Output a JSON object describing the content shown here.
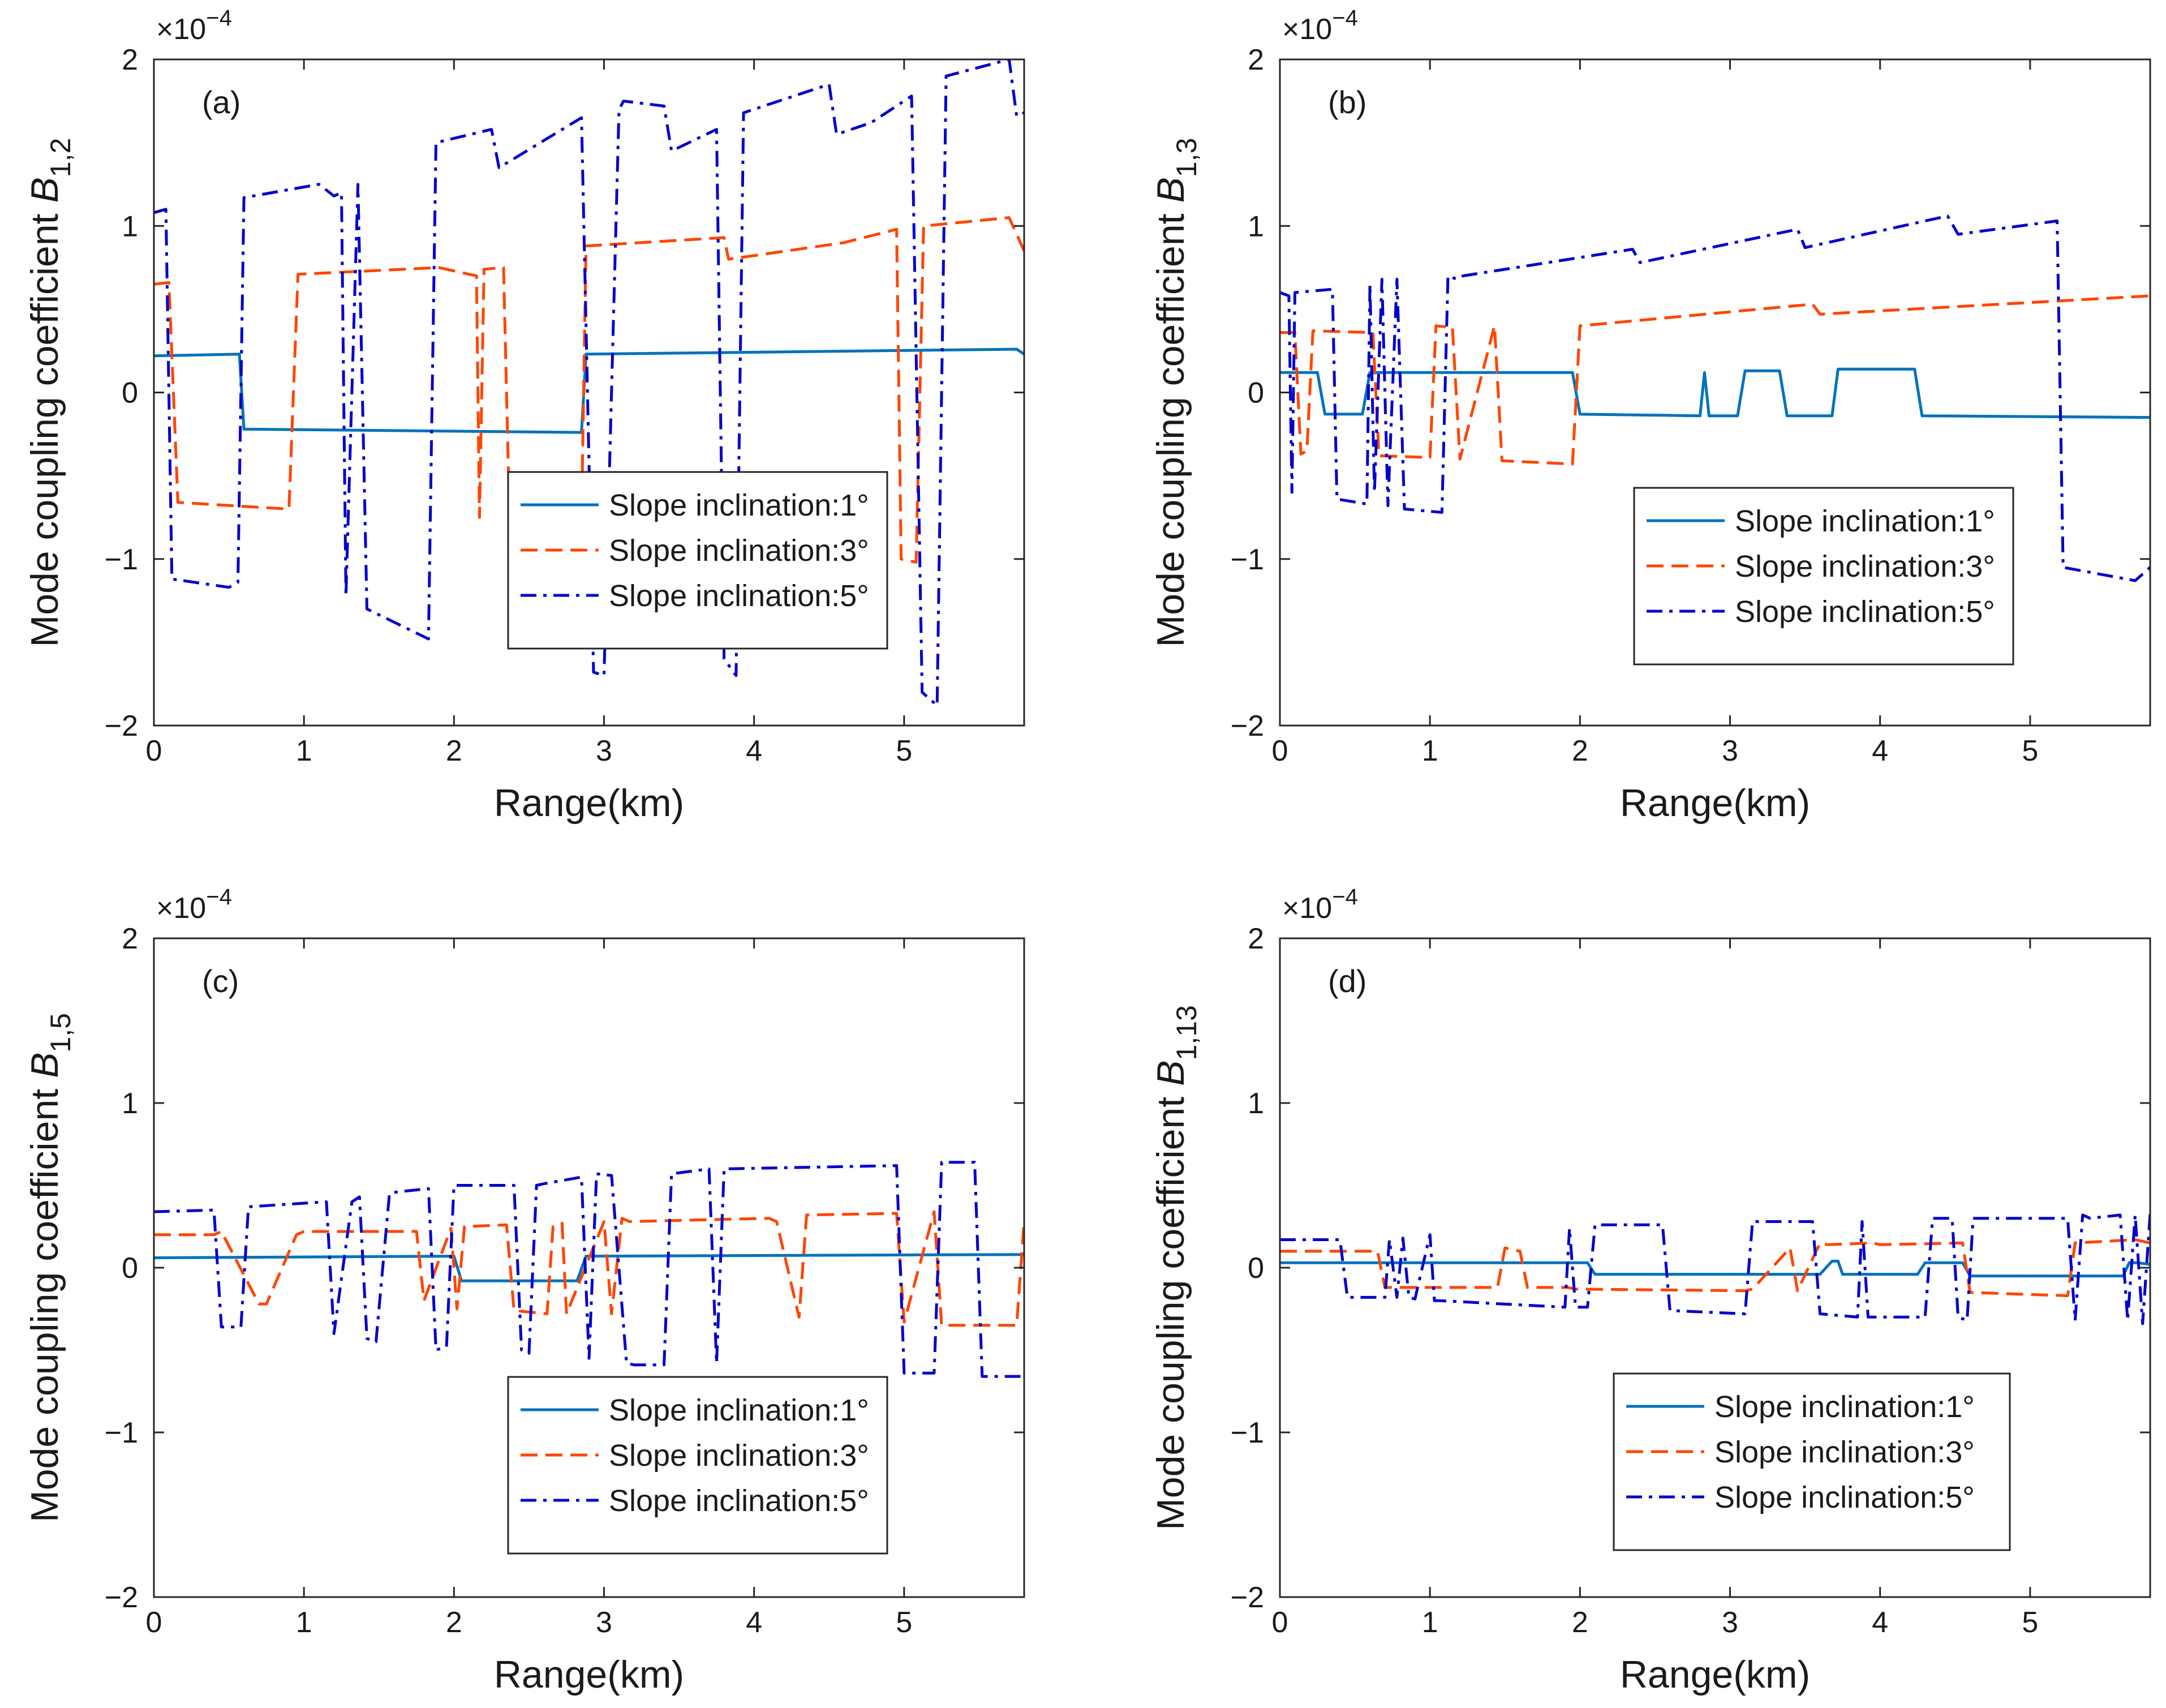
{
  "colors": {
    "slope1": "#0072BD",
    "slope3": "#FF4500",
    "slope5": "#0000CD",
    "axis": "#262626",
    "text": "#1a1a1a"
  },
  "chart_data": [
    {
      "type": "line",
      "panel": "(a)",
      "xlabel": "Range(km)",
      "ylabel_prefix": "Mode coupling coefficient ",
      "ylabel_symbol": "B",
      "ylabel_subscript": "1,2",
      "y_multiplier": "×10",
      "y_multiplier_exp": "−4",
      "xlim": [
        0,
        5.8
      ],
      "ylim": [
        -2,
        2
      ],
      "xticks": [
        0,
        1,
        2,
        3,
        4,
        5
      ],
      "xtick_labels": [
        "0",
        "1",
        "2",
        "3",
        "4",
        "5"
      ],
      "yticks": [
        -2,
        -1,
        0,
        1,
        2
      ],
      "ytick_labels": [
        "−2",
        "−1",
        "0",
        "1",
        "2"
      ],
      "grid": false,
      "legend_position": "center-right",
      "series": [
        {
          "name": "Slope inclination:1°",
          "style": "solid",
          "color": "#0072BD",
          "x": [
            0,
            0.57,
            0.6,
            2.85,
            2.88,
            5.75,
            5.8
          ],
          "y": [
            0.22,
            0.23,
            -0.22,
            -0.24,
            0.23,
            0.26,
            0.23
          ]
        },
        {
          "name": "Slope inclination:3°",
          "style": "dashed",
          "color": "#FF4500",
          "x": [
            0,
            0.1,
            0.16,
            0.9,
            0.96,
            1.9,
            2.15,
            2.17,
            2.2,
            2.33,
            2.37,
            2.85,
            2.88,
            3.8,
            3.83,
            4.6,
            4.95,
            4.98,
            5.08,
            5.13,
            5.7,
            5.8
          ],
          "y": [
            0.65,
            0.66,
            -0.66,
            -0.7,
            0.71,
            0.75,
            0.7,
            -0.75,
            0.74,
            0.75,
            -0.75,
            -0.78,
            0.88,
            0.93,
            0.8,
            0.9,
            0.98,
            -1.0,
            -1.02,
            1.0,
            1.05,
            0.85
          ],
          "note": "values ×10^-4"
        },
        {
          "name": "Slope inclination:5°",
          "style": "dashdot",
          "color": "#0000CD",
          "x": [
            0,
            0.08,
            0.12,
            0.5,
            0.56,
            0.6,
            1.1,
            1.2,
            1.25,
            1.28,
            1.36,
            1.42,
            1.83,
            1.88,
            2.25,
            2.3,
            2.85,
            2.93,
            3.0,
            3.1,
            3.13,
            3.4,
            3.45,
            3.75,
            3.8,
            3.88,
            3.93,
            4.5,
            4.55,
            4.78,
            5.05,
            5.12,
            5.22,
            5.28,
            5.7,
            5.75,
            5.8
          ],
          "y": [
            1.08,
            1.1,
            -1.12,
            -1.17,
            -1.14,
            1.17,
            1.25,
            1.18,
            1.2,
            -1.22,
            1.25,
            -1.3,
            -1.48,
            1.5,
            1.58,
            1.35,
            1.65,
            -1.68,
            -1.7,
            1.7,
            1.75,
            1.72,
            1.45,
            1.58,
            -1.6,
            -1.7,
            1.68,
            1.85,
            1.55,
            1.62,
            1.78,
            -1.8,
            -1.88,
            1.9,
            2.0,
            1.66,
            1.68
          ]
        }
      ]
    },
    {
      "type": "line",
      "panel": "(b)",
      "xlabel": "Range(km)",
      "ylabel_prefix": "Mode coupling coefficient ",
      "ylabel_symbol": "B",
      "ylabel_subscript": "1,3",
      "y_multiplier": "×10",
      "y_multiplier_exp": "−4",
      "xlim": [
        0,
        5.8
      ],
      "ylim": [
        -2,
        2
      ],
      "xticks": [
        0,
        1,
        2,
        3,
        4,
        5
      ],
      "xtick_labels": [
        "0",
        "1",
        "2",
        "3",
        "4",
        "5"
      ],
      "yticks": [
        -2,
        -1,
        0,
        1,
        2
      ],
      "ytick_labels": [
        "−2",
        "−1",
        "0",
        "1",
        "2"
      ],
      "grid": false,
      "legend_position": "center-right",
      "series": [
        {
          "name": "Slope inclination:1°",
          "style": "solid",
          "color": "#0072BD",
          "x": [
            0,
            0.25,
            0.3,
            0.55,
            0.6,
            1.95,
            2.0,
            2.8,
            2.83,
            2.86,
            3.05,
            3.1,
            3.33,
            3.38,
            3.68,
            3.72,
            4.23,
            4.28,
            5.8
          ],
          "y": [
            0.12,
            0.12,
            -0.13,
            -0.13,
            0.12,
            0.12,
            -0.13,
            -0.14,
            0.12,
            -0.14,
            -0.14,
            0.13,
            0.13,
            -0.14,
            -0.14,
            0.14,
            0.14,
            -0.14,
            -0.15
          ]
        },
        {
          "name": "Slope inclination:3°",
          "style": "dashed",
          "color": "#FF4500",
          "x": [
            0,
            0.1,
            0.14,
            0.18,
            0.22,
            0.62,
            0.66,
            1.0,
            1.04,
            1.15,
            1.2,
            1.43,
            1.48,
            1.95,
            2.0,
            3.55,
            3.6,
            5.8
          ],
          "y": [
            0.36,
            0.36,
            -0.37,
            -0.35,
            0.37,
            0.36,
            -0.38,
            -0.39,
            0.4,
            0.39,
            -0.4,
            0.4,
            -0.41,
            -0.43,
            0.4,
            0.53,
            0.47,
            0.58
          ]
        },
        {
          "name": "Slope inclination:5°",
          "style": "dashdot",
          "color": "#0000CD",
          "x": [
            0,
            0.06,
            0.08,
            0.1,
            0.35,
            0.38,
            0.58,
            0.6,
            0.63,
            0.68,
            0.72,
            0.78,
            0.83,
            1.08,
            1.12,
            1.18,
            1.22,
            2.35,
            2.4,
            3.45,
            3.5,
            4.45,
            4.52,
            5.18,
            5.22,
            5.7,
            5.8
          ],
          "y": [
            0.6,
            0.58,
            -0.6,
            0.6,
            0.62,
            -0.64,
            -0.67,
            0.65,
            -0.6,
            0.68,
            -0.68,
            0.68,
            -0.7,
            -0.72,
            0.7,
            0.68,
            0.7,
            0.86,
            0.78,
            0.98,
            0.87,
            1.06,
            0.95,
            1.03,
            -1.05,
            -1.13,
            -1.05
          ]
        }
      ]
    },
    {
      "type": "line",
      "panel": "(c)",
      "xlabel": "Range(km)",
      "ylabel_prefix": "Mode coupling coefficient ",
      "ylabel_symbol": "B",
      "ylabel_subscript": "1,5",
      "y_multiplier": "×10",
      "y_multiplier_exp": "−4",
      "xlim": [
        0,
        5.8
      ],
      "ylim": [
        -2,
        2
      ],
      "xticks": [
        0,
        1,
        2,
        3,
        4,
        5
      ],
      "xtick_labels": [
        "0",
        "1",
        "2",
        "3",
        "4",
        "5"
      ],
      "yticks": [
        -2,
        -1,
        0,
        1,
        2
      ],
      "ytick_labels": [
        "−2",
        "−1",
        "0",
        "1",
        "2"
      ],
      "grid": false,
      "legend_position": "bottom-right",
      "series": [
        {
          "name": "Slope inclination:1°",
          "style": "solid",
          "color": "#0072BD",
          "x": [
            0,
            2.0,
            2.05,
            2.82,
            2.88,
            5.8
          ],
          "y": [
            0.06,
            0.07,
            -0.08,
            -0.08,
            0.07,
            0.08
          ]
        },
        {
          "name": "Slope inclination:3°",
          "style": "dashed",
          "color": "#FF4500",
          "x": [
            0,
            0.4,
            0.45,
            0.7,
            0.75,
            0.95,
            1.0,
            1.75,
            1.8,
            1.98,
            2.02,
            2.07,
            2.35,
            2.4,
            2.62,
            2.66,
            2.72,
            2.75,
            3.0,
            3.05,
            3.12,
            3.17,
            4.1,
            4.15,
            4.3,
            4.35,
            4.95,
            5.0,
            5.2,
            5.25,
            5.75,
            5.8
          ],
          "y": [
            0.2,
            0.2,
            0.22,
            -0.22,
            -0.22,
            0.2,
            0.22,
            0.22,
            -0.2,
            0.24,
            -0.25,
            0.25,
            0.26,
            -0.26,
            -0.28,
            0.25,
            0.27,
            -0.28,
            0.28,
            -0.28,
            0.3,
            0.28,
            0.3,
            0.28,
            -0.3,
            0.32,
            0.33,
            -0.33,
            0.34,
            -0.35,
            -0.35,
            0.28
          ]
        },
        {
          "name": "Slope inclination:5°",
          "style": "dashdot",
          "color": "#0000CD",
          "x": [
            0,
            0.4,
            0.45,
            0.58,
            0.63,
            1.15,
            1.2,
            1.32,
            1.37,
            1.42,
            1.48,
            1.57,
            1.62,
            1.83,
            1.88,
            1.95,
            2.0,
            2.4,
            2.45,
            2.5,
            2.55,
            2.6,
            2.85,
            2.9,
            2.95,
            3.05,
            3.15,
            3.2,
            3.4,
            3.45,
            3.7,
            3.75,
            3.8,
            4.95,
            5.0,
            5.2,
            5.25,
            5.47,
            5.52,
            5.8
          ],
          "y": [
            0.34,
            0.35,
            -0.36,
            -0.36,
            0.37,
            0.4,
            -0.4,
            0.4,
            0.43,
            -0.43,
            -0.45,
            0.45,
            0.46,
            0.48,
            -0.5,
            -0.48,
            0.5,
            0.5,
            -0.5,
            -0.52,
            0.5,
            0.51,
            0.55,
            -0.55,
            0.57,
            0.56,
            -0.58,
            -0.59,
            -0.59,
            0.57,
            0.6,
            -0.58,
            0.6,
            0.62,
            -0.64,
            -0.64,
            0.64,
            0.64,
            -0.66,
            -0.66
          ]
        }
      ]
    },
    {
      "type": "line",
      "panel": "(d)",
      "xlabel": "Range(km)",
      "ylabel_prefix": "Mode coupling coefficient ",
      "ylabel_symbol": "B",
      "ylabel_subscript": "1,13",
      "y_multiplier": "×10",
      "y_multiplier_exp": "−4",
      "xlim": [
        0,
        5.8
      ],
      "ylim": [
        -2,
        2
      ],
      "xticks": [
        0,
        1,
        2,
        3,
        4,
        5
      ],
      "xtick_labels": [
        "0",
        "1",
        "2",
        "3",
        "4",
        "5"
      ],
      "yticks": [
        -2,
        -1,
        0,
        1,
        2
      ],
      "ytick_labels": [
        "−2",
        "−1",
        "0",
        "1",
        "2"
      ],
      "grid": false,
      "legend_position": "bottom-right",
      "series": [
        {
          "name": "Slope inclination:1°",
          "style": "solid",
          "color": "#0072BD",
          "x": [
            0,
            2.05,
            2.1,
            3.6,
            3.68,
            3.72,
            3.75,
            4.25,
            4.3,
            4.55,
            4.6,
            5.62,
            5.66,
            5.72,
            5.8
          ],
          "y": [
            0.03,
            0.03,
            -0.04,
            -0.04,
            0.04,
            0.04,
            -0.04,
            -0.04,
            0.03,
            0.03,
            -0.05,
            -0.05,
            0.03,
            0.03,
            0.02
          ]
        },
        {
          "name": "Slope inclination:3°",
          "style": "dashed",
          "color": "#FF4500",
          "x": [
            0,
            0.65,
            0.7,
            1.45,
            1.5,
            1.6,
            1.65,
            1.92,
            1.97,
            3.1,
            3.15,
            3.4,
            3.45,
            3.6,
            3.65,
            3.95,
            4.0,
            4.55,
            4.6,
            5.25,
            5.3,
            5.7,
            5.8
          ],
          "y": [
            0.1,
            0.1,
            -0.12,
            -0.12,
            0.12,
            0.1,
            -0.12,
            -0.12,
            -0.13,
            -0.14,
            -0.13,
            0.12,
            -0.14,
            0.15,
            0.14,
            0.15,
            0.14,
            0.15,
            -0.15,
            -0.17,
            0.15,
            0.17,
            0.15
          ]
        },
        {
          "name": "Slope inclination:5°",
          "style": "dashdot",
          "color": "#0000CD",
          "x": [
            0,
            0.4,
            0.45,
            0.7,
            0.73,
            0.78,
            0.82,
            0.86,
            0.9,
            1.0,
            1.03,
            1.06,
            1.9,
            1.93,
            1.97,
            2.05,
            2.1,
            2.55,
            2.6,
            3.1,
            3.15,
            3.55,
            3.6,
            3.85,
            3.88,
            3.92,
            3.95,
            4.3,
            4.35,
            4.48,
            4.52,
            4.58,
            4.62,
            5.25,
            5.3,
            5.35,
            5.4,
            5.6,
            5.65,
            5.7,
            5.75,
            5.8
          ],
          "y": [
            0.17,
            0.17,
            -0.18,
            -0.18,
            0.17,
            -0.18,
            0.18,
            -0.18,
            -0.19,
            0.2,
            -0.2,
            -0.2,
            -0.24,
            0.24,
            -0.24,
            -0.24,
            0.26,
            0.26,
            -0.26,
            -0.28,
            0.28,
            0.28,
            -0.28,
            -0.3,
            0.28,
            -0.3,
            -0.3,
            -0.3,
            0.3,
            0.3,
            -0.3,
            -0.32,
            0.3,
            0.3,
            -0.32,
            0.32,
            0.3,
            0.32,
            -0.32,
            0.32,
            -0.34,
            0.33
          ]
        }
      ]
    }
  ]
}
